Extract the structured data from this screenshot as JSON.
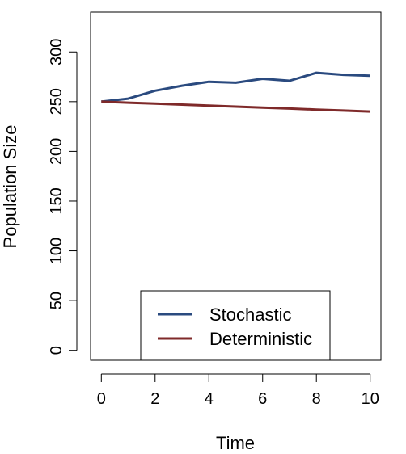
{
  "chart_data": {
    "type": "line",
    "title": "",
    "xlabel": "Time",
    "ylabel": "Population Size",
    "xlim": [
      -0.4,
      10.4
    ],
    "ylim": [
      -10,
      340
    ],
    "x_ticks": [
      0,
      2,
      4,
      6,
      8,
      10
    ],
    "x_tick_labels": [
      "0",
      "2",
      "4",
      "6",
      "8",
      "10"
    ],
    "y_ticks": [
      0,
      50,
      100,
      150,
      200,
      250,
      300
    ],
    "y_tick_labels": [
      "0",
      "50",
      "100",
      "150",
      "200",
      "250",
      "300"
    ],
    "grid": false,
    "legend_position": "bottom-center",
    "series": [
      {
        "name": "Stochastic",
        "color": "#2a4a7f",
        "x": [
          0,
          1,
          2,
          3,
          4,
          5,
          6,
          7,
          8,
          9,
          10
        ],
        "values": [
          250,
          253,
          261,
          266,
          270,
          269,
          273,
          271,
          279,
          277,
          276
        ]
      },
      {
        "name": "Deterministic",
        "color": "#7f2a2a",
        "x": [
          0,
          1,
          2,
          3,
          4,
          5,
          6,
          7,
          8,
          9,
          10
        ],
        "values": [
          250,
          249,
          248,
          247,
          246,
          245,
          244,
          243,
          242,
          241,
          240
        ]
      }
    ]
  }
}
